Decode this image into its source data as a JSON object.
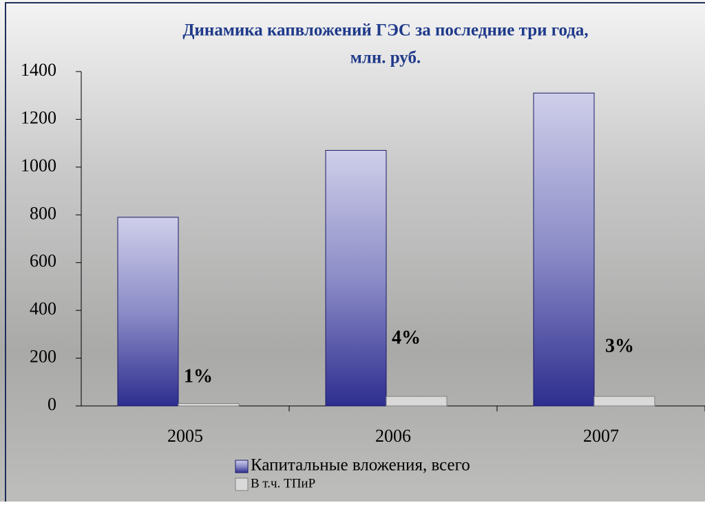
{
  "chart_data": {
    "type": "bar",
    "title": [
      "Динамика капвложений ГЭС за последние три года,",
      "млн. руб."
    ],
    "categories": [
      "2005",
      "2006",
      "2007"
    ],
    "series": [
      {
        "name": "Капитальные вложения, всего",
        "color": "#333399",
        "values": [
          790,
          1070,
          1310
        ]
      },
      {
        "name": "В т.ч. ТПиР",
        "color": "#d9d9d9",
        "values": [
          10,
          40,
          40
        ]
      }
    ],
    "annotations": [
      "1%",
      "4%",
      "3%"
    ],
    "ylim": [
      0,
      1400
    ],
    "yticks": [
      0,
      200,
      400,
      600,
      800,
      1000,
      1200,
      1400
    ],
    "legend": "bottom"
  }
}
